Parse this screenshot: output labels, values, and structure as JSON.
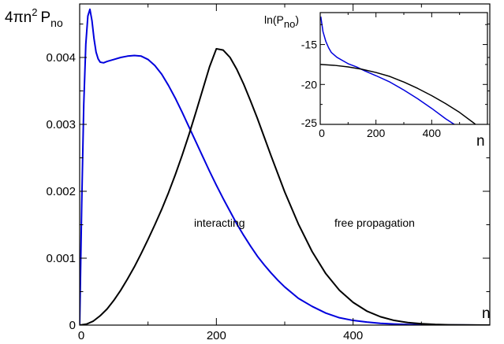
{
  "chart_data": [
    {
      "type": "line",
      "title": "",
      "ylabel_main": "4πn",
      "ylabel_sup": "2",
      "ylabel_P": "P",
      "ylabel_sub": "no",
      "xlabel": "n",
      "xlim": [
        0,
        600
      ],
      "ylim": [
        0,
        0.0048
      ],
      "xticks": [
        0,
        200,
        400
      ],
      "yticks": [
        0,
        0.001,
        0.002,
        0.003,
        0.004
      ],
      "xtick_labels": [
        "0",
        "200",
        "400"
      ],
      "ytick_labels": [
        "0",
        "0.001",
        "0.002",
        "0.003",
        "0.004"
      ],
      "grid": false,
      "annotations": [
        {
          "text": "interacting",
          "x": 180,
          "y": 0.00118
        },
        {
          "text": "free propagation",
          "x": 420,
          "y": 0.00118
        }
      ],
      "series": [
        {
          "color": "#0000dd",
          "x": [
            0,
            3,
            6,
            9,
            12,
            15,
            18,
            21,
            24,
            27,
            30,
            35,
            40,
            50,
            60,
            70,
            80,
            90,
            100,
            110,
            120,
            130,
            140,
            150,
            160,
            170,
            180,
            190,
            200,
            210,
            220,
            230,
            240,
            250,
            260,
            270,
            280,
            290,
            300,
            320,
            340,
            360,
            380,
            400,
            420,
            440,
            460,
            480,
            500,
            520,
            540,
            560,
            580,
            600
          ],
          "y": [
            0,
            0.0018,
            0.0033,
            0.0042,
            0.00462,
            0.00472,
            0.00455,
            0.00428,
            0.00408,
            0.00398,
            0.00393,
            0.00392,
            0.00394,
            0.00397,
            0.004,
            0.00402,
            0.00403,
            0.00402,
            0.00397,
            0.00388,
            0.00375,
            0.00358,
            0.00339,
            0.00318,
            0.00296,
            0.00274,
            0.00252,
            0.0023,
            0.00209,
            0.00189,
            0.0017,
            0.00151,
            0.00134,
            0.00118,
            0.00103,
            0.0009,
            0.00078,
            0.00067,
            0.00057,
            0.0004,
            0.00028,
            0.00018,
            0.00011,
            7e-05,
            4.5e-05,
            2.7e-05,
            1.6e-05,
            9e-06,
            5e-06,
            3e-06,
            1.5e-06,
            8e-07,
            4e-07,
            2e-07
          ]
        },
        {
          "color": "#000000",
          "x": [
            0,
            10,
            20,
            30,
            40,
            50,
            60,
            70,
            80,
            90,
            100,
            110,
            120,
            130,
            140,
            150,
            160,
            170,
            180,
            190,
            200,
            210,
            220,
            230,
            240,
            250,
            260,
            270,
            280,
            290,
            300,
            320,
            340,
            360,
            380,
            400,
            420,
            440,
            460,
            480,
            500,
            520,
            540,
            560,
            580,
            600
          ],
          "y": [
            0,
            1.5e-05,
            6e-05,
            0.00014,
            0.00024,
            0.00037,
            0.00052,
            0.00069,
            0.00087,
            0.00107,
            0.00128,
            0.0015,
            0.00173,
            0.00198,
            0.00225,
            0.00254,
            0.00285,
            0.00318,
            0.00352,
            0.00386,
            0.00413,
            0.00411,
            0.004,
            0.00382,
            0.0036,
            0.00335,
            0.00309,
            0.00281,
            0.00253,
            0.00226,
            0.00199,
            0.00151,
            0.0011,
            0.00077,
            0.00052,
            0.00034,
            0.00021,
            0.000125,
            7e-05,
            3.8e-05,
            2e-05,
            1e-05,
            5e-06,
            2.3e-06,
            1e-06,
            4e-07
          ]
        }
      ]
    },
    {
      "type": "line",
      "title": "",
      "ylabel": "ln(P",
      "ylabel_sub": "no",
      "ylabel_close": ")",
      "xlabel": "n",
      "xlim": [
        0,
        600
      ],
      "ylim": [
        -25,
        -11
      ],
      "xticks": [
        0,
        200,
        400
      ],
      "yticks": [
        -25,
        -20,
        -15
      ],
      "xtick_labels": [
        "0",
        "200",
        "400"
      ],
      "ytick_labels": [
        "-25",
        "-20",
        "-15"
      ],
      "grid": false,
      "series": [
        {
          "color": "#0000dd",
          "x": [
            2,
            10,
            20,
            30,
            40,
            60,
            80,
            100,
            130,
            160,
            200,
            250,
            300,
            350,
            400,
            450,
            490
          ],
          "y": [
            -11.5,
            -13.4,
            -14.6,
            -15.4,
            -16.0,
            -16.6,
            -17.0,
            -17.4,
            -17.8,
            -18.3,
            -18.9,
            -19.7,
            -20.7,
            -21.8,
            -23.0,
            -24.3,
            -25.2
          ]
        },
        {
          "color": "#000000",
          "x": [
            2,
            50,
            100,
            150,
            200,
            250,
            300,
            350,
            400,
            450,
            500,
            550,
            575
          ],
          "y": [
            -17.5,
            -17.6,
            -17.8,
            -18.1,
            -18.5,
            -19.0,
            -19.7,
            -20.5,
            -21.4,
            -22.4,
            -23.5,
            -24.8,
            -25.5
          ]
        }
      ]
    }
  ]
}
